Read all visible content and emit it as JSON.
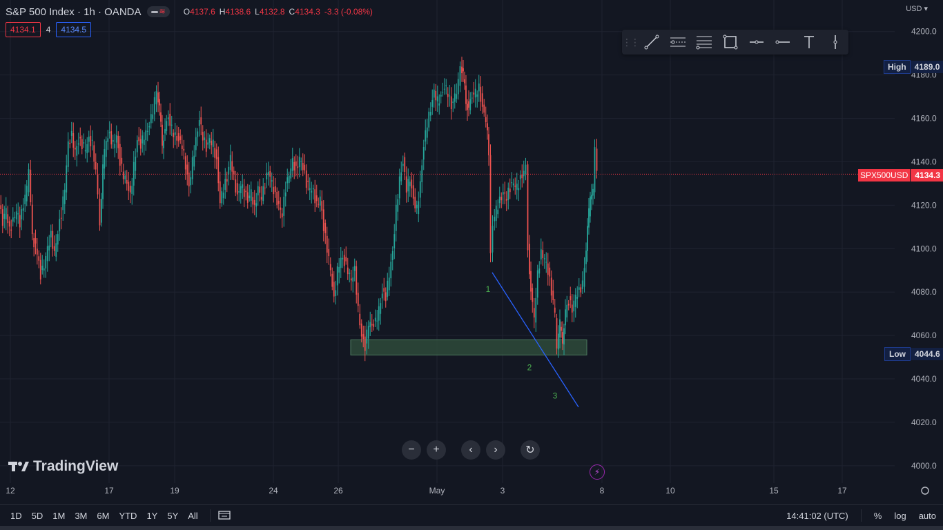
{
  "header": {
    "title": "S&P 500 Index · 1h · OANDA",
    "ohlc": {
      "o_label": "O",
      "o": "4137.6",
      "h_label": "H",
      "h": "4138.6",
      "l_label": "L",
      "l": "4132.8",
      "c_label": "C",
      "c": "4134.3",
      "change": "-3.3 (-0.08%)"
    },
    "sell_price": "4134.1",
    "spread": "4",
    "buy_price": "4134.5",
    "currency": "USD"
  },
  "chart_data": {
    "type": "candlestick",
    "symbol": "SPX500USD",
    "last_price": "4134.3",
    "high_label": "High",
    "high_value": "4189.0",
    "low_label": "Low",
    "low_value": "4044.6",
    "y_ticks": [
      "4200.0",
      "4180.0",
      "4160.0",
      "4140.0",
      "4120.0",
      "4100.0",
      "4080.0",
      "4060.0",
      "4040.0",
      "4020.0",
      "4000.0"
    ],
    "x_ticks": [
      "12",
      "17",
      "19",
      "24",
      "26",
      "May",
      "3",
      "8",
      "10",
      "15",
      "17"
    ],
    "ylim": [
      3992,
      4212
    ],
    "annotations": [
      "1",
      "2",
      "3"
    ],
    "path_points": [
      [
        0,
        4120
      ],
      [
        5,
        4112
      ],
      [
        10,
        4118
      ],
      [
        15,
        4108
      ],
      [
        20,
        4113
      ],
      [
        25,
        4118
      ],
      [
        30,
        4112
      ],
      [
        35,
        4120
      ],
      [
        40,
        4128
      ],
      [
        43,
        4138
      ],
      [
        48,
        4105
      ],
      [
        55,
        4098
      ],
      [
        60,
        4088
      ],
      [
        65,
        4092
      ],
      [
        70,
        4100
      ],
      [
        75,
        4106
      ],
      [
        80,
        4098
      ],
      [
        85,
        4108
      ],
      [
        90,
        4116
      ],
      [
        95,
        4128
      ],
      [
        100,
        4148
      ],
      [
        105,
        4152
      ],
      [
        110,
        4145
      ],
      [
        115,
        4150
      ],
      [
        120,
        4148
      ],
      [
        125,
        4146
      ],
      [
        130,
        4150
      ],
      [
        135,
        4148
      ],
      [
        140,
        4136
      ],
      [
        143,
        4125
      ],
      [
        146,
        4112
      ],
      [
        150,
        4138
      ],
      [
        155,
        4150
      ],
      [
        160,
        4152
      ],
      [
        165,
        4148
      ],
      [
        170,
        4152
      ],
      [
        175,
        4140
      ],
      [
        180,
        4134
      ],
      [
        185,
        4130
      ],
      [
        190,
        4124
      ],
      [
        195,
        4138
      ],
      [
        200,
        4150
      ],
      [
        205,
        4148
      ],
      [
        210,
        4152
      ],
      [
        215,
        4154
      ],
      [
        220,
        4160
      ],
      [
        225,
        4168
      ],
      [
        228,
        4174
      ],
      [
        232,
        4165
      ],
      [
        236,
        4148
      ],
      [
        240,
        4155
      ],
      [
        245,
        4160
      ],
      [
        250,
        4155
      ],
      [
        255,
        4152
      ],
      [
        260,
        4150
      ],
      [
        265,
        4148
      ],
      [
        270,
        4138
      ],
      [
        275,
        4128
      ],
      [
        280,
        4140
      ],
      [
        285,
        4150
      ],
      [
        290,
        4160
      ],
      [
        295,
        4152
      ],
      [
        300,
        4146
      ],
      [
        305,
        4150
      ],
      [
        310,
        4148
      ],
      [
        315,
        4140
      ],
      [
        320,
        4122
      ],
      [
        325,
        4128
      ],
      [
        330,
        4132
      ],
      [
        335,
        4142
      ],
      [
        340,
        4132
      ],
      [
        345,
        4124
      ],
      [
        350,
        4130
      ],
      [
        355,
        4126
      ],
      [
        360,
        4122
      ],
      [
        365,
        4126
      ],
      [
        370,
        4118
      ],
      [
        375,
        4128
      ],
      [
        380,
        4124
      ],
      [
        385,
        4130
      ],
      [
        390,
        4136
      ],
      [
        395,
        4130
      ],
      [
        400,
        4124
      ],
      [
        405,
        4120
      ],
      [
        410,
        4116
      ],
      [
        415,
        4128
      ],
      [
        420,
        4134
      ],
      [
        425,
        4140
      ],
      [
        430,
        4136
      ],
      [
        435,
        4142
      ],
      [
        440,
        4138
      ],
      [
        445,
        4130
      ],
      [
        450,
        4128
      ],
      [
        455,
        4126
      ],
      [
        460,
        4120
      ],
      [
        465,
        4124
      ],
      [
        470,
        4110
      ],
      [
        475,
        4100
      ],
      [
        480,
        4090
      ],
      [
        485,
        4076
      ],
      [
        490,
        4090
      ],
      [
        495,
        4096
      ],
      [
        500,
        4094
      ],
      [
        505,
        4090
      ],
      [
        510,
        4085
      ],
      [
        515,
        4090
      ],
      [
        520,
        4072
      ],
      [
        525,
        4060
      ],
      [
        530,
        4055
      ],
      [
        535,
        4066
      ],
      [
        540,
        4064
      ],
      [
        545,
        4066
      ],
      [
        550,
        4072
      ],
      [
        555,
        4080
      ],
      [
        560,
        4078
      ],
      [
        565,
        4088
      ],
      [
        570,
        4098
      ],
      [
        575,
        4118
      ],
      [
        580,
        4132
      ],
      [
        585,
        4140
      ],
      [
        590,
        4128
      ],
      [
        595,
        4132
      ],
      [
        600,
        4122
      ],
      [
        605,
        4118
      ],
      [
        610,
        4130
      ],
      [
        615,
        4148
      ],
      [
        620,
        4158
      ],
      [
        625,
        4164
      ],
      [
        630,
        4172
      ],
      [
        635,
        4168
      ],
      [
        640,
        4170
      ],
      [
        645,
        4175
      ],
      [
        650,
        4172
      ],
      [
        655,
        4165
      ],
      [
        660,
        4170
      ],
      [
        665,
        4176
      ],
      [
        668,
        4186
      ],
      [
        672,
        4180
      ],
      [
        676,
        4168
      ],
      [
        680,
        4164
      ],
      [
        685,
        4170
      ],
      [
        690,
        4172
      ],
      [
        695,
        4174
      ],
      [
        700,
        4165
      ],
      [
        705,
        4160
      ],
      [
        709,
        4145
      ],
      [
        712,
        4100
      ],
      [
        715,
        4112
      ],
      [
        720,
        4118
      ],
      [
        725,
        4122
      ],
      [
        730,
        4126
      ],
      [
        735,
        4124
      ],
      [
        740,
        4128
      ],
      [
        745,
        4130
      ],
      [
        750,
        4128
      ],
      [
        755,
        4132
      ],
      [
        760,
        4136
      ],
      [
        763,
        4138
      ],
      [
        766,
        4100
      ],
      [
        770,
        4080
      ],
      [
        775,
        4068
      ],
      [
        780,
        4088
      ],
      [
        785,
        4098
      ],
      [
        790,
        4096
      ],
      [
        795,
        4090
      ],
      [
        800,
        4080
      ],
      [
        805,
        4070
      ],
      [
        808,
        4055
      ],
      [
        812,
        4066
      ],
      [
        816,
        4058
      ],
      [
        820,
        4070
      ],
      [
        825,
        4076
      ],
      [
        830,
        4072
      ],
      [
        835,
        4078
      ],
      [
        840,
        4080
      ],
      [
        845,
        4084
      ],
      [
        848,
        4092
      ],
      [
        852,
        4110
      ],
      [
        856,
        4124
      ],
      [
        860,
        4128
      ],
      [
        863,
        4146
      ],
      [
        866,
        4134
      ]
    ],
    "drawing_line": {
      "from": [
        713,
        4089
      ],
      "to": [
        838,
        4027
      ]
    },
    "zone_box": {
      "x1": 508,
      "x2": 850,
      "top": 4058,
      "bottom": 4051
    }
  },
  "toolbar_icons": [
    "drag-grip-icon",
    "trend-line-icon",
    "parallel-channel-icon",
    "fib-retracement-icon",
    "rectangle-icon",
    "horizontal-ray-icon",
    "horizontal-line-icon",
    "text-icon",
    "vertical-line-icon"
  ],
  "zoom_controls": [
    "zoom-out-icon",
    "zoom-in-icon",
    "scroll-left-icon",
    "scroll-right-icon",
    "reset-icon"
  ],
  "logo_text": "TradingView",
  "bottom": {
    "ranges": [
      "1D",
      "5D",
      "1M",
      "3M",
      "6M",
      "YTD",
      "1Y",
      "5Y",
      "All"
    ],
    "time": "14:41:02 (UTC)",
    "percent": "%",
    "log": "log",
    "auto": "auto"
  },
  "colors": {
    "up": "#26a69a",
    "down": "#ef5350",
    "bg": "#131722",
    "grid": "#1f2330",
    "line": "#2962ff",
    "zone": "#2e4a3a",
    "last_price": "#f23645"
  }
}
